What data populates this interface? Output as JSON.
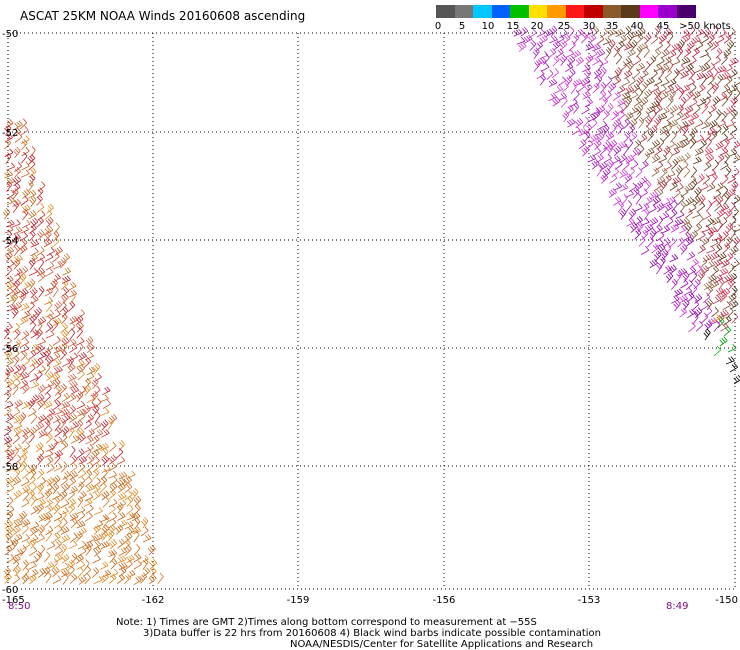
{
  "title": "ASCAT 25KM NOAA Winds 20160608 ascending",
  "legend": {
    "colors": [
      "#555555",
      "#777777",
      "#00c8ff",
      "#0060ff",
      "#00c000",
      "#ffe000",
      "#ff9a00",
      "#ff1818",
      "#c00000",
      "#8a5a2a",
      "#5a3a1a",
      "#ff00ff",
      "#9900cc",
      "#4a006a"
    ],
    "labels": [
      "0",
      "5",
      "10",
      "15",
      "20",
      "25",
      "30",
      "35",
      "40",
      "45",
      ">50 knots"
    ]
  },
  "map": {
    "lat_labels": [
      "-50",
      "-52",
      "-54",
      "-56",
      "-58",
      "-60"
    ],
    "lon_labels": [
      "-165",
      "-162",
      "-159",
      "-156",
      "-153",
      "-150"
    ],
    "pass_times": [
      "8:50",
      "8:49"
    ]
  },
  "notes": {
    "line1": "Note: 1) Times are GMT 2)Times along bottom correspond to measurement at −55S",
    "line2": "3)Data buffer is 22 hrs from 20160608 4) Black wind barbs indicate possible contamination",
    "line3": "NOAA/NESDIS/Center for Satellite Applications and Research"
  }
}
